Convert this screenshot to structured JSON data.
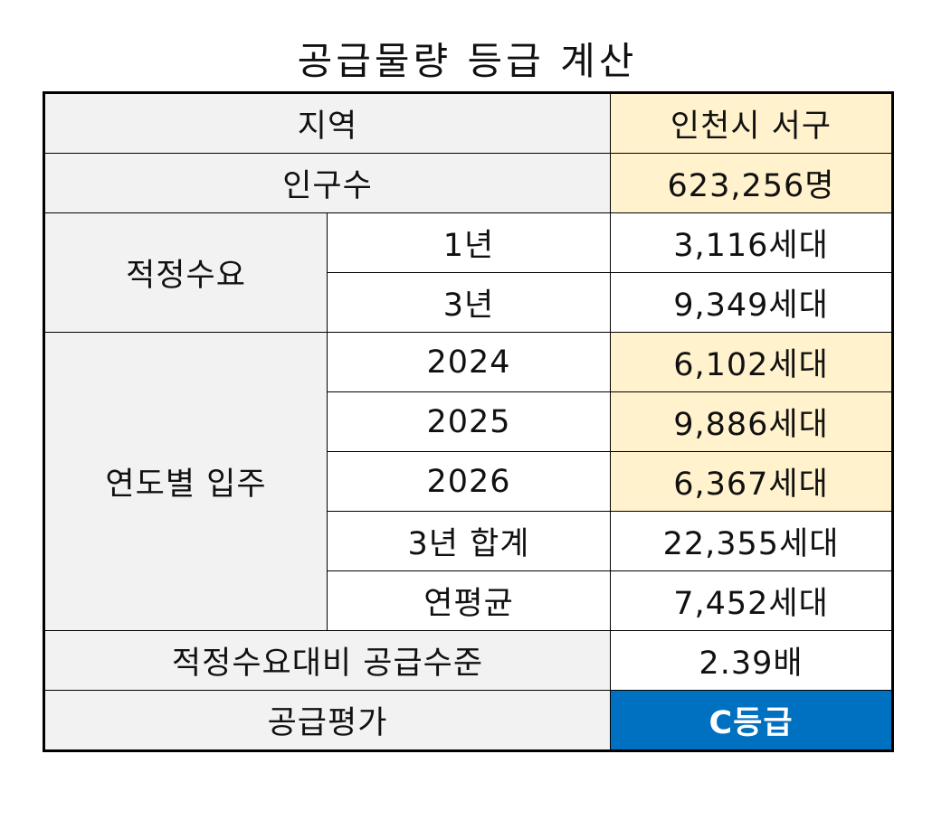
{
  "title": "공급물량 등급 계산",
  "colors": {
    "label_bg": "#f2f2f2",
    "input_bg": "#fff2cc",
    "grade_bg": "#0070c0",
    "grade_text": "#ffffff"
  },
  "rows": {
    "region": {
      "label": "지역",
      "value": "인천시 서구"
    },
    "population": {
      "label": "인구수",
      "value": "623,256명"
    },
    "demand": {
      "label": "적정수요",
      "year1": {
        "label": "1년",
        "value": "3,116세대"
      },
      "year3": {
        "label": "3년",
        "value": "9,349세대"
      }
    },
    "supply": {
      "label": "연도별 입주",
      "y2024": {
        "label": "2024",
        "value": "6,102세대"
      },
      "y2025": {
        "label": "2025",
        "value": "9,886세대"
      },
      "y2026": {
        "label": "2026",
        "value": "6,367세대"
      },
      "total": {
        "label": "3년 합계",
        "value": "22,355세대"
      },
      "annual_avg": {
        "label": "연평균",
        "value": "7,452세대"
      }
    },
    "ratio": {
      "label": "적정수요대비 공급수준",
      "value": "2.39배"
    },
    "evaluation": {
      "label": "공급평가",
      "value": "C등급"
    }
  }
}
